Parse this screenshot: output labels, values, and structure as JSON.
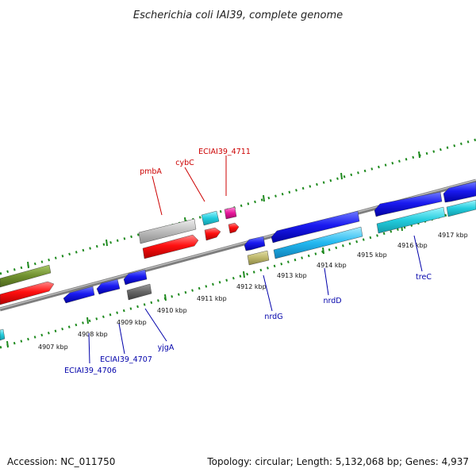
{
  "title": "Escherichia coli IAI39, complete genome",
  "footer": {
    "accession": "Accession: NC_011750",
    "summary": "Topology: circular; Length: 5,132,068 bp; Genes: 4,937"
  },
  "scale": {
    "ticks": [
      "4907 kbp",
      "4908 kbp",
      "4909 kbp",
      "4910 kbp",
      "4911 kbp",
      "4912 kbp",
      "4913 kbp",
      "4914 kbp",
      "4915 kbp",
      "4916 kbp",
      "4917 kbp"
    ]
  },
  "colors": {
    "backbone": "#8a8a8a",
    "dot_track": "#1e8a1e",
    "forward_label": "#cc0000",
    "reverse_label": "#0000aa"
  },
  "top_labels": [
    "ECIAI39_4711",
    "cybC",
    "pmbA"
  ],
  "bottom_labels": [
    "nrdG",
    "nrdD",
    "treC",
    "yjgA",
    "ECIAI39_4707",
    "ECIAI39_4706"
  ]
}
